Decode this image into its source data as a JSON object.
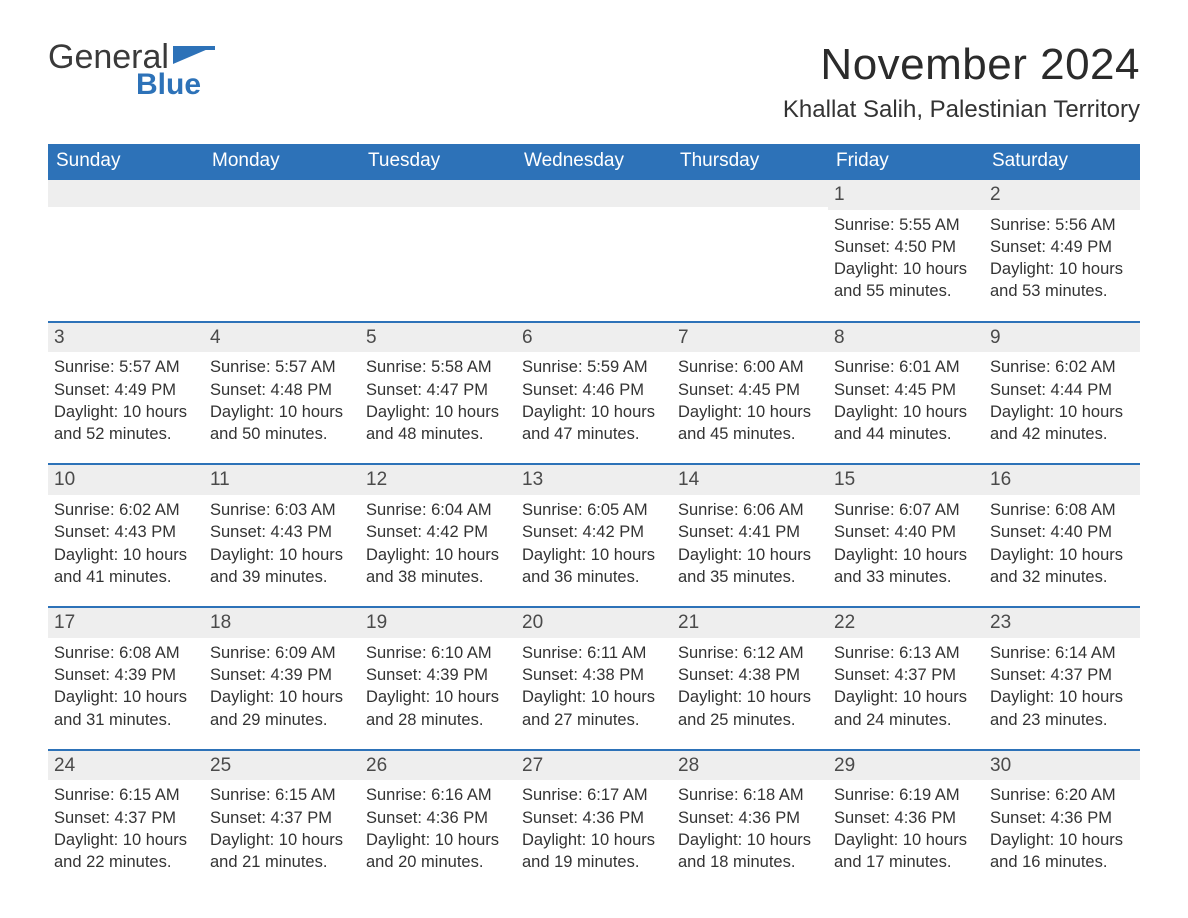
{
  "logo": {
    "word1": "General",
    "word2": "Blue"
  },
  "title": "November 2024",
  "location": "Khallat Salih, Palestinian Territory",
  "header_bg": "#2d72b8",
  "header_text": "#ffffff",
  "daynum_bg": "#eeeeee",
  "week_border": "#2d72b8",
  "weekdays": [
    "Sunday",
    "Monday",
    "Tuesday",
    "Wednesday",
    "Thursday",
    "Friday",
    "Saturday"
  ],
  "weeks": [
    [
      {
        "blank": true
      },
      {
        "blank": true
      },
      {
        "blank": true
      },
      {
        "blank": true
      },
      {
        "blank": true
      },
      {
        "day": "1",
        "sunrise": "Sunrise: 5:55 AM",
        "sunset": "Sunset: 4:50 PM",
        "daylight": "Daylight: 10 hours and 55 minutes."
      },
      {
        "day": "2",
        "sunrise": "Sunrise: 5:56 AM",
        "sunset": "Sunset: 4:49 PM",
        "daylight": "Daylight: 10 hours and 53 minutes."
      }
    ],
    [
      {
        "day": "3",
        "sunrise": "Sunrise: 5:57 AM",
        "sunset": "Sunset: 4:49 PM",
        "daylight": "Daylight: 10 hours and 52 minutes."
      },
      {
        "day": "4",
        "sunrise": "Sunrise: 5:57 AM",
        "sunset": "Sunset: 4:48 PM",
        "daylight": "Daylight: 10 hours and 50 minutes."
      },
      {
        "day": "5",
        "sunrise": "Sunrise: 5:58 AM",
        "sunset": "Sunset: 4:47 PM",
        "daylight": "Daylight: 10 hours and 48 minutes."
      },
      {
        "day": "6",
        "sunrise": "Sunrise: 5:59 AM",
        "sunset": "Sunset: 4:46 PM",
        "daylight": "Daylight: 10 hours and 47 minutes."
      },
      {
        "day": "7",
        "sunrise": "Sunrise: 6:00 AM",
        "sunset": "Sunset: 4:45 PM",
        "daylight": "Daylight: 10 hours and 45 minutes."
      },
      {
        "day": "8",
        "sunrise": "Sunrise: 6:01 AM",
        "sunset": "Sunset: 4:45 PM",
        "daylight": "Daylight: 10 hours and 44 minutes."
      },
      {
        "day": "9",
        "sunrise": "Sunrise: 6:02 AM",
        "sunset": "Sunset: 4:44 PM",
        "daylight": "Daylight: 10 hours and 42 minutes."
      }
    ],
    [
      {
        "day": "10",
        "sunrise": "Sunrise: 6:02 AM",
        "sunset": "Sunset: 4:43 PM",
        "daylight": "Daylight: 10 hours and 41 minutes."
      },
      {
        "day": "11",
        "sunrise": "Sunrise: 6:03 AM",
        "sunset": "Sunset: 4:43 PM",
        "daylight": "Daylight: 10 hours and 39 minutes."
      },
      {
        "day": "12",
        "sunrise": "Sunrise: 6:04 AM",
        "sunset": "Sunset: 4:42 PM",
        "daylight": "Daylight: 10 hours and 38 minutes."
      },
      {
        "day": "13",
        "sunrise": "Sunrise: 6:05 AM",
        "sunset": "Sunset: 4:42 PM",
        "daylight": "Daylight: 10 hours and 36 minutes."
      },
      {
        "day": "14",
        "sunrise": "Sunrise: 6:06 AM",
        "sunset": "Sunset: 4:41 PM",
        "daylight": "Daylight: 10 hours and 35 minutes."
      },
      {
        "day": "15",
        "sunrise": "Sunrise: 6:07 AM",
        "sunset": "Sunset: 4:40 PM",
        "daylight": "Daylight: 10 hours and 33 minutes."
      },
      {
        "day": "16",
        "sunrise": "Sunrise: 6:08 AM",
        "sunset": "Sunset: 4:40 PM",
        "daylight": "Daylight: 10 hours and 32 minutes."
      }
    ],
    [
      {
        "day": "17",
        "sunrise": "Sunrise: 6:08 AM",
        "sunset": "Sunset: 4:39 PM",
        "daylight": "Daylight: 10 hours and 31 minutes."
      },
      {
        "day": "18",
        "sunrise": "Sunrise: 6:09 AM",
        "sunset": "Sunset: 4:39 PM",
        "daylight": "Daylight: 10 hours and 29 minutes."
      },
      {
        "day": "19",
        "sunrise": "Sunrise: 6:10 AM",
        "sunset": "Sunset: 4:39 PM",
        "daylight": "Daylight: 10 hours and 28 minutes."
      },
      {
        "day": "20",
        "sunrise": "Sunrise: 6:11 AM",
        "sunset": "Sunset: 4:38 PM",
        "daylight": "Daylight: 10 hours and 27 minutes."
      },
      {
        "day": "21",
        "sunrise": "Sunrise: 6:12 AM",
        "sunset": "Sunset: 4:38 PM",
        "daylight": "Daylight: 10 hours and 25 minutes."
      },
      {
        "day": "22",
        "sunrise": "Sunrise: 6:13 AM",
        "sunset": "Sunset: 4:37 PM",
        "daylight": "Daylight: 10 hours and 24 minutes."
      },
      {
        "day": "23",
        "sunrise": "Sunrise: 6:14 AM",
        "sunset": "Sunset: 4:37 PM",
        "daylight": "Daylight: 10 hours and 23 minutes."
      }
    ],
    [
      {
        "day": "24",
        "sunrise": "Sunrise: 6:15 AM",
        "sunset": "Sunset: 4:37 PM",
        "daylight": "Daylight: 10 hours and 22 minutes."
      },
      {
        "day": "25",
        "sunrise": "Sunrise: 6:15 AM",
        "sunset": "Sunset: 4:37 PM",
        "daylight": "Daylight: 10 hours and 21 minutes."
      },
      {
        "day": "26",
        "sunrise": "Sunrise: 6:16 AM",
        "sunset": "Sunset: 4:36 PM",
        "daylight": "Daylight: 10 hours and 20 minutes."
      },
      {
        "day": "27",
        "sunrise": "Sunrise: 6:17 AM",
        "sunset": "Sunset: 4:36 PM",
        "daylight": "Daylight: 10 hours and 19 minutes."
      },
      {
        "day": "28",
        "sunrise": "Sunrise: 6:18 AM",
        "sunset": "Sunset: 4:36 PM",
        "daylight": "Daylight: 10 hours and 18 minutes."
      },
      {
        "day": "29",
        "sunrise": "Sunrise: 6:19 AM",
        "sunset": "Sunset: 4:36 PM",
        "daylight": "Daylight: 10 hours and 17 minutes."
      },
      {
        "day": "30",
        "sunrise": "Sunrise: 6:20 AM",
        "sunset": "Sunset: 4:36 PM",
        "daylight": "Daylight: 10 hours and 16 minutes."
      }
    ]
  ]
}
